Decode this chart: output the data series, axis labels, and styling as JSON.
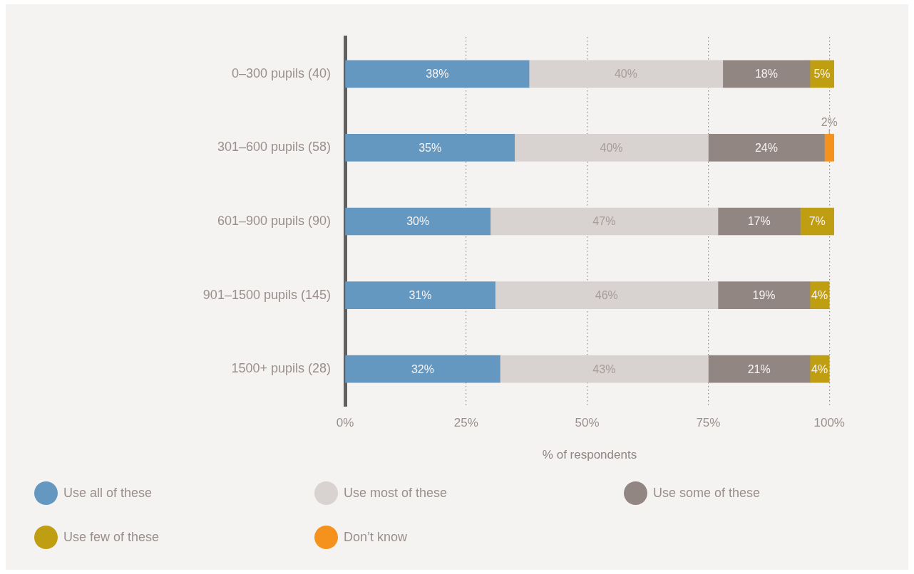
{
  "chart_data": {
    "type": "bar",
    "orientation": "horizontal",
    "stacked": true,
    "categories": [
      "0–300 pupils (40)",
      "301–600 pupils (58)",
      "601–900 pupils (90)",
      "901–1500 pupils (145)",
      "1500+ pupils (28)"
    ],
    "series": [
      {
        "name": "Use all of these",
        "color": "#6598c0",
        "values": [
          38,
          35,
          30,
          31,
          32
        ],
        "value_labels": [
          "38%",
          "35%",
          "30%",
          "31%",
          "32%"
        ]
      },
      {
        "name": "Use most of these",
        "color": "#d8d2d1",
        "values": [
          40,
          40,
          47,
          46,
          43
        ],
        "value_labels": [
          "40%",
          "40%",
          "47%",
          "46%",
          "43%"
        ]
      },
      {
        "name": "Use some of these",
        "color": "#918682",
        "values": [
          18,
          24,
          17,
          19,
          21
        ],
        "value_labels": [
          "18%",
          "24%",
          "17%",
          "19%",
          "21%"
        ]
      },
      {
        "name": "Use few of these",
        "color": "#c09e12",
        "values": [
          5,
          null,
          7,
          4,
          4
        ],
        "value_labels": [
          "5%",
          null,
          "7%",
          "4%",
          "4%"
        ]
      },
      {
        "name": "Don’t know",
        "color": "#f5921e",
        "values": [
          null,
          2,
          null,
          null,
          null
        ],
        "value_labels": [
          null,
          "2%",
          null,
          null,
          null
        ]
      }
    ],
    "xlabel": "% of respondents",
    "xlim": [
      0,
      101
    ],
    "xticks": [
      {
        "value": 0,
        "label": "0%"
      },
      {
        "value": 25,
        "label": "25%"
      },
      {
        "value": 50,
        "label": "50%"
      },
      {
        "value": 75,
        "label": "75%"
      },
      {
        "value": 100,
        "label": "100%"
      }
    ],
    "grid": "x",
    "legend": "bottom"
  }
}
